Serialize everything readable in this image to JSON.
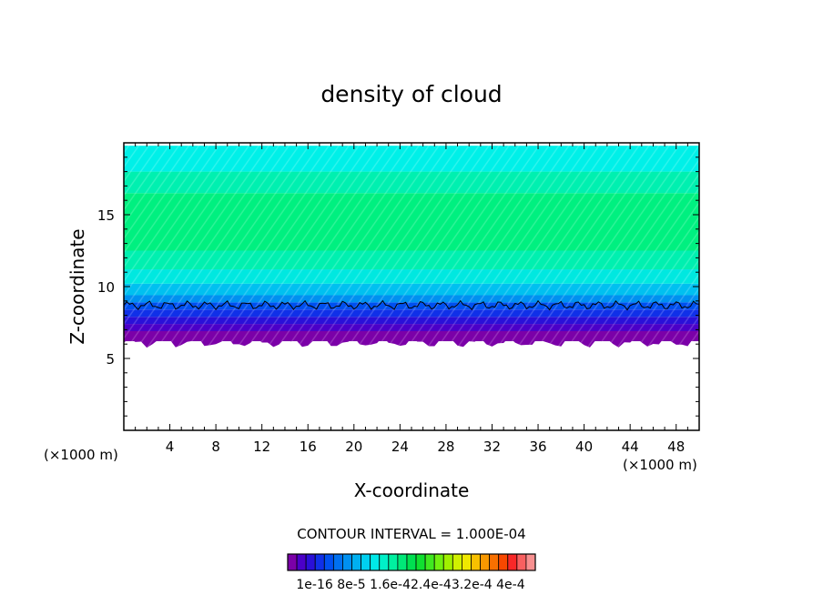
{
  "chart_data": {
    "type": "heatmap",
    "title": "density of cloud",
    "xlabel": "X-coordinate",
    "ylabel": "Z-coordinate",
    "x_unit_left": "(×1000 m)",
    "x_unit_right": "(×1000 m)",
    "xlim": [
      0,
      50
    ],
    "ylim": [
      0,
      20
    ],
    "x_ticks": [
      4,
      8,
      12,
      16,
      20,
      24,
      28,
      32,
      36,
      40,
      44,
      48
    ],
    "y_ticks": [
      5,
      10,
      15
    ],
    "contour_interval_text": "CONTOUR INTERVAL = 1.000E-04",
    "colorbar_labels": [
      "1e-16",
      "8e-5",
      "1.6e-4",
      "2.4e-4",
      "3.2e-4",
      "4e-4"
    ],
    "colorbar_label_text": "1e-16 8e-5 1.6e-42.4e-43.2e-4 4e-4",
    "colorbar_colors": [
      "#7b00a8",
      "#4b00c8",
      "#2a10d8",
      "#1030e8",
      "#0050f0",
      "#0070f0",
      "#0090f0",
      "#00b0f0",
      "#00d0f0",
      "#00e8e8",
      "#00f0c8",
      "#00f0a0",
      "#00e878",
      "#00e050",
      "#10e030",
      "#40e820",
      "#70f010",
      "#a0f000",
      "#d0f000",
      "#f0e800",
      "#f8c000",
      "#f89800",
      "#f87000",
      "#f84800",
      "#f82828",
      "#f86060",
      "#f89090"
    ],
    "cloud_layers": [
      {
        "z_bottom": 6.2,
        "z_top": 6.9,
        "color": "#7b00a8"
      },
      {
        "z_bottom": 6.9,
        "z_top": 7.4,
        "color": "#4b00c8"
      },
      {
        "z_bottom": 7.4,
        "z_top": 7.9,
        "color": "#2a10d8"
      },
      {
        "z_bottom": 7.9,
        "z_top": 8.4,
        "color": "#1030e8"
      },
      {
        "z_bottom": 8.4,
        "z_top": 8.9,
        "color": "#0050f0"
      },
      {
        "z_bottom": 8.9,
        "z_top": 9.4,
        "color": "#0090f0"
      },
      {
        "z_bottom": 9.4,
        "z_top": 10.2,
        "color": "#00c0f0"
      },
      {
        "z_bottom": 10.2,
        "z_top": 11.2,
        "color": "#00e8e0"
      },
      {
        "z_bottom": 11.2,
        "z_top": 12.5,
        "color": "#00f0b0"
      },
      {
        "z_bottom": 12.5,
        "z_top": 16.5,
        "color": "#00f080"
      },
      {
        "z_bottom": 16.5,
        "z_top": 18.0,
        "color": "#00f0b0"
      },
      {
        "z_bottom": 18.0,
        "z_top": 19.8,
        "color": "#00f0e8"
      }
    ],
    "contour_line_z": 8.7
  }
}
